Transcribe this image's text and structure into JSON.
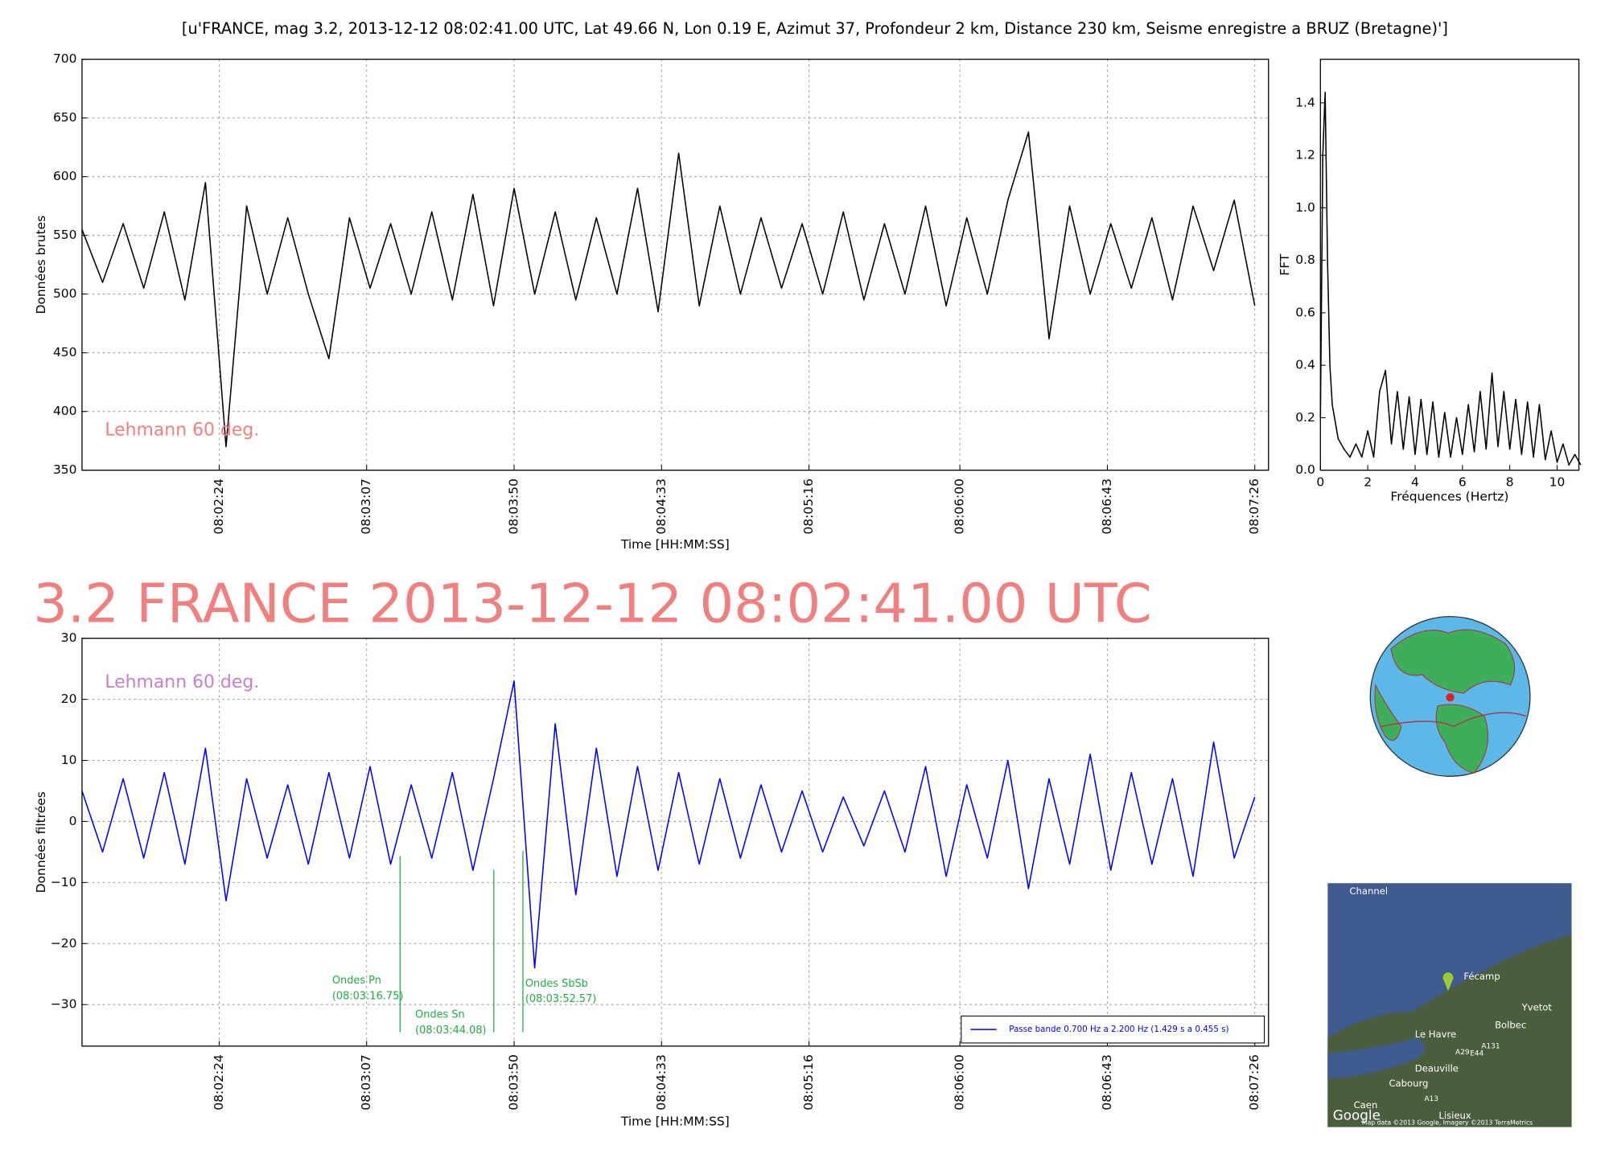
{
  "headline": "3.2 FRANCE 2013-12-12 08:02:41.00 UTC",
  "map": {
    "labels": [
      "Channel",
      "Fécamp",
      "Yvetot",
      "Bolbec",
      "Le Havre",
      "Deauville",
      "Cabourg",
      "Caen",
      "Lisieux",
      "E44",
      "A29",
      "A131",
      "A13",
      "Google",
      "Map data ©2013 Google, Imagery ©2013 TerraMetrics"
    ]
  },
  "chart_data": [
    {
      "type": "line",
      "title": "[u'FRANCE, mag 3.2, 2013-12-12 08:02:41.00 UTC, Lat 49.66 N, Lon 0.19 E, Azimut 37, Profondeur 2 km, Distance 230 km, Seisme enregistre a BRUZ (Bretagne)']",
      "xlabel": "Time [HH:MM:SS]",
      "ylabel": "Données brutes",
      "annotation": "Lehmann 60 deg.",
      "annotation_color": "#f08080",
      "x": [
        "08:01:44",
        "08:01:50",
        "08:01:56",
        "08:02:02",
        "08:02:08",
        "08:02:14",
        "08:02:20",
        "08:02:26",
        "08:02:32",
        "08:02:38",
        "08:02:44",
        "08:02:50",
        "08:02:56",
        "08:03:02",
        "08:03:08",
        "08:03:14",
        "08:03:20",
        "08:03:26",
        "08:03:32",
        "08:03:38",
        "08:03:44",
        "08:03:50",
        "08:03:56",
        "08:04:02",
        "08:04:08",
        "08:04:14",
        "08:04:20",
        "08:04:26",
        "08:04:32",
        "08:04:38",
        "08:04:44",
        "08:04:50",
        "08:04:56",
        "08:05:02",
        "08:05:08",
        "08:05:14",
        "08:05:20",
        "08:05:26",
        "08:05:32",
        "08:05:38",
        "08:05:44",
        "08:05:50",
        "08:05:56",
        "08:06:02",
        "08:06:08",
        "08:06:14",
        "08:06:20",
        "08:06:26",
        "08:06:32",
        "08:06:38",
        "08:06:44",
        "08:06:50",
        "08:06:56",
        "08:07:02",
        "08:07:08",
        "08:07:14",
        "08:07:20",
        "08:07:26"
      ],
      "series": [
        {
          "color": "#000000",
          "values": [
            555,
            510,
            560,
            505,
            570,
            495,
            595,
            370,
            575,
            500,
            565,
            500,
            445,
            565,
            505,
            560,
            500,
            570,
            495,
            585,
            490,
            590,
            500,
            570,
            495,
            565,
            500,
            590,
            485,
            620,
            490,
            575,
            500,
            565,
            505,
            560,
            500,
            570,
            495,
            560,
            500,
            575,
            490,
            565,
            500,
            580,
            638,
            462,
            575,
            500,
            560,
            505,
            565,
            495,
            575,
            520,
            580,
            490
          ]
        }
      ],
      "xlim": [
        "08:01:44",
        "08:07:30"
      ],
      "xticks": [
        "08:02:24",
        "08:03:07",
        "08:03:50",
        "08:04:33",
        "08:05:16",
        "08:06:00",
        "08:06:43",
        "08:07:26"
      ],
      "ylim": [
        350,
        700
      ],
      "yticks": [
        350,
        400,
        450,
        500,
        550,
        600,
        650,
        700
      ],
      "grid": true
    },
    {
      "type": "line",
      "xlabel": "Fréquences (Hertz)",
      "ylabel": "FFT",
      "x": [
        0,
        0.1,
        0.2,
        0.3,
        0.4,
        0.5,
        0.75,
        1,
        1.25,
        1.5,
        1.75,
        2,
        2.25,
        2.5,
        2.75,
        3,
        3.25,
        3.5,
        3.75,
        4,
        4.25,
        4.5,
        4.75,
        5,
        5.25,
        5.5,
        5.75,
        6,
        6.25,
        6.5,
        6.75,
        7,
        7.25,
        7.5,
        7.75,
        8,
        8.25,
        8.5,
        8.75,
        9,
        9.25,
        9.5,
        9.75,
        10,
        10.25,
        10.5,
        10.75,
        11
      ],
      "series": [
        {
          "color": "#000000",
          "values": [
            0.2,
            1.2,
            1.44,
            0.8,
            0.4,
            0.25,
            0.12,
            0.08,
            0.05,
            0.1,
            0.05,
            0.15,
            0.05,
            0.3,
            0.38,
            0.1,
            0.3,
            0.08,
            0.28,
            0.06,
            0.27,
            0.06,
            0.26,
            0.05,
            0.22,
            0.05,
            0.2,
            0.06,
            0.25,
            0.07,
            0.3,
            0.08,
            0.37,
            0.09,
            0.3,
            0.08,
            0.27,
            0.06,
            0.26,
            0.05,
            0.25,
            0.04,
            0.15,
            0.03,
            0.1,
            0.02,
            0.06,
            0.02
          ]
        }
      ],
      "xlim": [
        0,
        10.92
      ],
      "xticks": [
        0,
        2,
        4,
        6,
        8,
        10
      ],
      "ylim": [
        0,
        1.566
      ],
      "yticks": [
        {
          "value": 0,
          "label": "0.0"
        },
        0.2,
        0.4,
        0.6,
        0.8,
        {
          "value": 1,
          "label": "1.0"
        },
        1.2,
        1.4
      ],
      "grid": false
    },
    {
      "type": "line",
      "xlabel": "Time [HH:MM:SS]",
      "ylabel": "Données filtrées",
      "annotation": "Lehmann 60 deg.",
      "annotation_color": "#c77fc7",
      "x": [
        "08:01:44",
        "08:01:50",
        "08:01:56",
        "08:02:02",
        "08:02:08",
        "08:02:14",
        "08:02:20",
        "08:02:26",
        "08:02:32",
        "08:02:38",
        "08:02:44",
        "08:02:50",
        "08:02:56",
        "08:03:02",
        "08:03:08",
        "08:03:14",
        "08:03:20",
        "08:03:26",
        "08:03:32",
        "08:03:38",
        "08:03:44",
        "08:03:50",
        "08:03:56",
        "08:04:02",
        "08:04:08",
        "08:04:14",
        "08:04:20",
        "08:04:26",
        "08:04:32",
        "08:04:38",
        "08:04:44",
        "08:04:50",
        "08:04:56",
        "08:05:02",
        "08:05:08",
        "08:05:14",
        "08:05:20",
        "08:05:26",
        "08:05:32",
        "08:05:38",
        "08:05:44",
        "08:05:50",
        "08:05:56",
        "08:06:02",
        "08:06:08",
        "08:06:14",
        "08:06:20",
        "08:06:26",
        "08:06:32",
        "08:06:38",
        "08:06:44",
        "08:06:50",
        "08:06:56",
        "08:07:02",
        "08:07:08",
        "08:07:14",
        "08:07:20",
        "08:07:26"
      ],
      "series": [
        {
          "name": "Passe bande 0.700 Hz a 2.200 Hz (1.429 s a 0.455 s)",
          "color": "#0000ff",
          "values": [
            5,
            -5,
            7,
            -6,
            8,
            -7,
            12,
            -13,
            7,
            -6,
            6,
            -7,
            8,
            -6,
            9,
            -7,
            6,
            -6,
            8,
            -8,
            7,
            23,
            -24,
            16,
            -12,
            12,
            -9,
            9,
            -8,
            8,
            -7,
            7,
            -6,
            6,
            -5,
            5,
            -5,
            4,
            -4,
            5,
            -5,
            9,
            -9,
            6,
            -6,
            10,
            -11,
            7,
            -7,
            11,
            -8,
            8,
            -7,
            7,
            -9,
            13,
            -6,
            4
          ]
        }
      ],
      "markers": [
        {
          "x": "08:03:16.75",
          "label": "Ondes Pn",
          "time_label": "(08:03:16.75)"
        },
        {
          "x": "08:03:44.08",
          "label": "Ondes Sn",
          "time_label": "(08:03:44.08)"
        },
        {
          "x": "08:03:52.57",
          "label": "Ondes SbSb",
          "time_label": "(08:03:52.57)"
        }
      ],
      "marker_color": "#22aa44",
      "xlim": [
        "08:01:44",
        "08:07:30"
      ],
      "xticks": [
        "08:02:24",
        "08:03:07",
        "08:03:50",
        "08:04:33",
        "08:05:16",
        "08:06:00",
        "08:06:43",
        "08:07:26"
      ],
      "ylim": [
        -36.8,
        30
      ],
      "yticks": [
        {
          "value": -30,
          "label": "−30"
        },
        {
          "value": -20,
          "label": "−20"
        },
        {
          "value": -10,
          "label": "−10"
        },
        0,
        10,
        20,
        30
      ],
      "grid": true,
      "legend": "lower right"
    }
  ]
}
